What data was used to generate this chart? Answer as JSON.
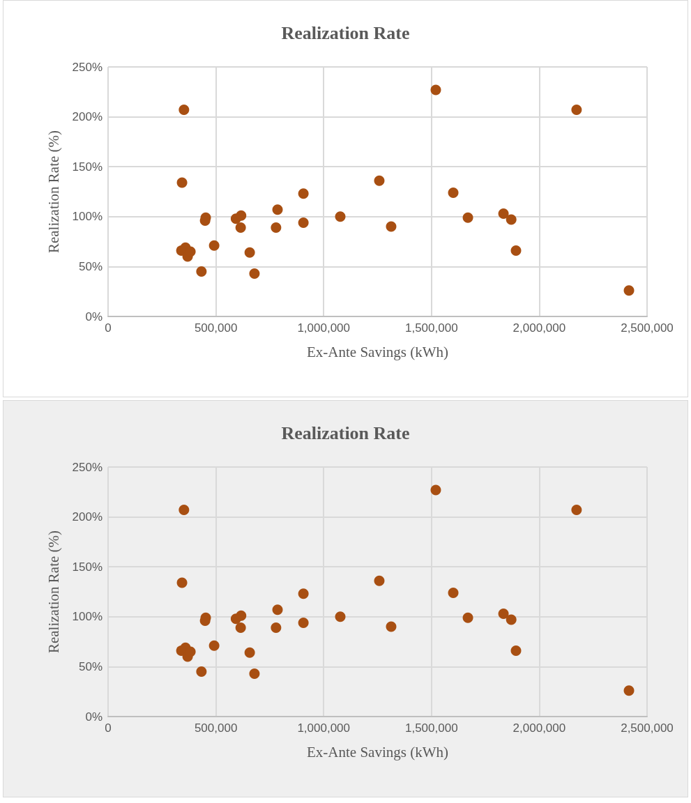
{
  "chart_data": [
    {
      "type": "scatter",
      "title": "Realization Rate",
      "xlabel": "Ex-Ante Savings (kWh)",
      "ylabel": "Realization Rate (%)",
      "x": [
        352000,
        343000,
        340000,
        359000,
        369000,
        382000,
        433000,
        453000,
        450000,
        492000,
        593000,
        617000,
        615000,
        657000,
        679000,
        779000,
        786000,
        906000,
        906000,
        1077000,
        1258000,
        1313000,
        1520000,
        1601000,
        1669000,
        1834000,
        1870000,
        1892000,
        2173000,
        2416000
      ],
      "series": [
        {
          "color": "#a84f12",
          "values": [
            207,
            134,
            66,
            69,
            60,
            65,
            45,
            99,
            96,
            71,
            98,
            101,
            89,
            64,
            43,
            89,
            107,
            123,
            94,
            100,
            136,
            90,
            227,
            124,
            99,
            103,
            97,
            66,
            207,
            26
          ]
        }
      ],
      "xlim": [
        0,
        2500000
      ],
      "xticks": [
        0,
        {
          "value": 500000,
          "label": "500,000"
        },
        {
          "value": 1000000,
          "label": "1,000,000"
        },
        {
          "value": 1500000,
          "label": "1,500,000"
        },
        {
          "value": 2000000,
          "label": "2,000,000"
        },
        {
          "value": 2500000,
          "label": "2,500,000"
        }
      ],
      "ylim": [
        0,
        250
      ],
      "yticks": [
        {
          "value": 0,
          "label": "0%"
        },
        {
          "value": 50,
          "label": "50%"
        },
        {
          "value": 100,
          "label": "100%"
        },
        {
          "value": 150,
          "label": "150%"
        },
        {
          "value": 200,
          "label": "200%"
        },
        {
          "value": 250,
          "label": "250%"
        }
      ],
      "grid": true,
      "marker": "circle"
    },
    {
      "type": "scatter",
      "title": "Realization Rate",
      "xlabel": "Ex-Ante Savings (kWh)",
      "ylabel": "Realization Rate (%)",
      "x": [
        352000,
        343000,
        340000,
        359000,
        369000,
        382000,
        433000,
        453000,
        450000,
        492000,
        593000,
        617000,
        615000,
        657000,
        679000,
        779000,
        786000,
        906000,
        906000,
        1077000,
        1258000,
        1313000,
        1520000,
        1601000,
        1669000,
        1834000,
        1870000,
        1892000,
        2173000,
        2416000
      ],
      "series": [
        {
          "color": "#a84f12",
          "values": [
            207,
            134,
            66,
            69,
            60,
            65,
            45,
            99,
            96,
            71,
            98,
            101,
            89,
            64,
            43,
            89,
            107,
            123,
            94,
            100,
            136,
            90,
            227,
            124,
            99,
            103,
            97,
            66,
            207,
            26
          ]
        }
      ],
      "xlim": [
        0,
        2500000
      ],
      "xticks": [
        0,
        {
          "value": 500000,
          "label": "500,000"
        },
        {
          "value": 1000000,
          "label": "1,000,000"
        },
        {
          "value": 1500000,
          "label": "1,500,000"
        },
        {
          "value": 2000000,
          "label": "2,000,000"
        },
        {
          "value": 2500000,
          "label": "2,500,000"
        }
      ],
      "ylim": [
        0,
        250
      ],
      "yticks": [
        {
          "value": 0,
          "label": "0%"
        },
        {
          "value": 50,
          "label": "50%"
        },
        {
          "value": 100,
          "label": "100%"
        },
        {
          "value": 150,
          "label": "150%"
        },
        {
          "value": 200,
          "label": "200%"
        },
        {
          "value": 250,
          "label": "250%"
        }
      ],
      "grid": true,
      "marker": "circle"
    }
  ]
}
